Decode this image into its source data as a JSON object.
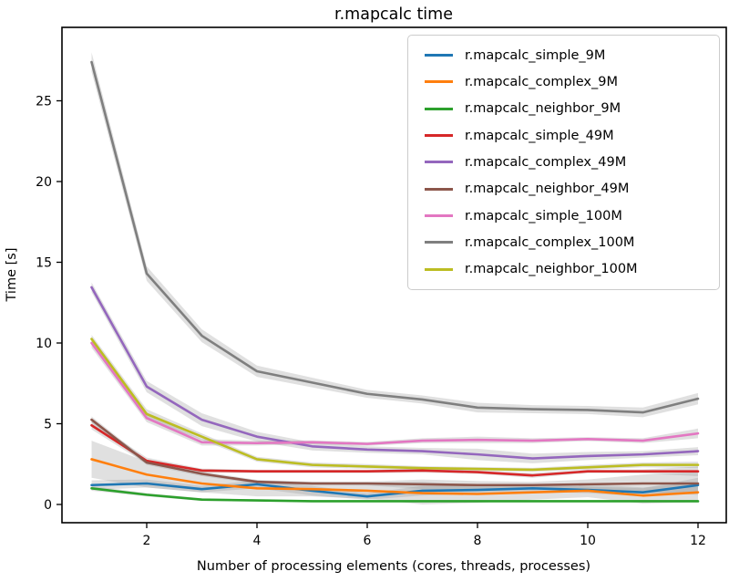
{
  "chart_data": {
    "type": "line",
    "title": "r.mapcalc time",
    "xlabel": "Number of processing elements (cores, threads, processes)",
    "ylabel": "Time [s]",
    "x": [
      1,
      2,
      3,
      4,
      5,
      6,
      7,
      8,
      9,
      10,
      11,
      12
    ],
    "xticks": [
      2,
      4,
      6,
      8,
      10,
      12
    ],
    "yticks": [
      0,
      5,
      10,
      15,
      20,
      25
    ],
    "xlim": [
      0.46,
      12.51
    ],
    "ylim": [
      -1.13,
      29.55
    ],
    "grid": false,
    "legend_position": "upper right",
    "band_color": "#999999",
    "band_opacity": 0.3,
    "axis_color": "#000000",
    "series": [
      {
        "name": "r.mapcalc_simple_9M",
        "color": "#1f77b4",
        "values": [
          1.2,
          1.3,
          0.95,
          1.25,
          0.85,
          0.5,
          0.85,
          0.9,
          1.0,
          0.9,
          0.75,
          1.2
        ],
        "err": [
          0.3,
          0.25,
          0.2,
          0.25,
          0.3,
          0.2,
          0.3,
          0.25,
          0.2,
          0.2,
          0.25,
          0.45
        ]
      },
      {
        "name": "r.mapcalc_complex_9M",
        "color": "#ff7f0e",
        "values": [
          2.8,
          1.85,
          1.3,
          1.0,
          0.95,
          0.85,
          0.7,
          0.65,
          0.75,
          0.85,
          0.55,
          0.75
        ],
        "err": [
          1.15,
          0.8,
          0.55,
          0.5,
          0.45,
          0.5,
          0.7,
          0.55,
          0.45,
          0.4,
          0.5,
          0.6
        ]
      },
      {
        "name": "r.mapcalc_neighbor_9M",
        "color": "#2ca02c",
        "values": [
          1.0,
          0.6,
          0.3,
          0.25,
          0.2,
          0.2,
          0.2,
          0.2,
          0.2,
          0.2,
          0.2,
          0.2
        ],
        "err": [
          0.15,
          0.1,
          0.08,
          0.06,
          0.05,
          0.05,
          0.05,
          0.05,
          0.05,
          0.05,
          0.05,
          0.08
        ]
      },
      {
        "name": "r.mapcalc_simple_49M",
        "color": "#d62728",
        "values": [
          4.9,
          2.7,
          2.1,
          2.05,
          2.05,
          2.05,
          2.1,
          2.0,
          1.8,
          2.05,
          2.05,
          2.05
        ],
        "err": [
          0.25,
          0.2,
          0.12,
          0.1,
          0.1,
          0.1,
          0.12,
          0.1,
          0.15,
          0.1,
          0.12,
          0.3
        ]
      },
      {
        "name": "r.mapcalc_complex_49M",
        "color": "#9467bd",
        "values": [
          13.45,
          7.3,
          5.25,
          4.2,
          3.6,
          3.4,
          3.3,
          3.1,
          2.85,
          3.0,
          3.1,
          3.3
        ],
        "err": [
          0.3,
          0.35,
          0.4,
          0.3,
          0.25,
          0.2,
          0.2,
          0.35,
          0.3,
          0.25,
          0.2,
          0.25
        ]
      },
      {
        "name": "r.mapcalc_neighbor_49M",
        "color": "#8c564b",
        "values": [
          5.25,
          2.6,
          1.9,
          1.4,
          1.3,
          1.3,
          1.25,
          1.2,
          1.2,
          1.25,
          1.3,
          1.3
        ],
        "err": [
          0.2,
          0.15,
          0.15,
          0.12,
          0.1,
          0.12,
          0.3,
          0.25,
          0.2,
          0.3,
          0.55,
          0.7
        ]
      },
      {
        "name": "r.mapcalc_simple_100M",
        "color": "#e377c2",
        "values": [
          10.0,
          5.35,
          3.85,
          3.8,
          3.85,
          3.75,
          3.95,
          4.0,
          3.95,
          4.05,
          3.95,
          4.4
        ],
        "err": [
          0.3,
          0.25,
          0.2,
          0.15,
          0.12,
          0.12,
          0.15,
          0.2,
          0.15,
          0.12,
          0.15,
          0.3
        ]
      },
      {
        "name": "r.mapcalc_complex_100M",
        "color": "#7f7f7f",
        "values": [
          27.4,
          14.3,
          10.45,
          8.25,
          7.55,
          6.85,
          6.5,
          6.0,
          5.9,
          5.85,
          5.7,
          6.55
        ],
        "err": [
          0.6,
          0.45,
          0.4,
          0.35,
          0.3,
          0.25,
          0.25,
          0.3,
          0.25,
          0.25,
          0.3,
          0.35
        ]
      },
      {
        "name": "r.mapcalc_neighbor_100M",
        "color": "#bcbd22",
        "values": [
          10.25,
          5.6,
          4.2,
          2.8,
          2.45,
          2.35,
          2.25,
          2.2,
          2.15,
          2.3,
          2.45,
          2.45
        ],
        "err": [
          0.25,
          0.3,
          0.2,
          0.15,
          0.15,
          0.15,
          0.12,
          0.12,
          0.12,
          0.15,
          0.15,
          0.2
        ]
      }
    ]
  }
}
